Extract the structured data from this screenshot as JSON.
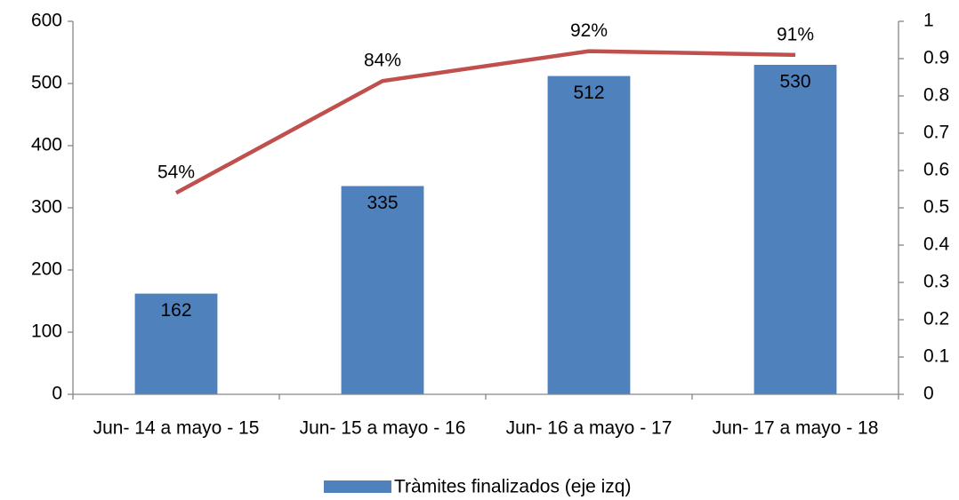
{
  "chart_data": {
    "type": "bar",
    "categories": [
      "Jun- 14 a mayo - 15",
      "Jun- 15 a mayo - 16",
      "Jun- 16 a mayo - 17",
      "Jun- 17 a mayo - 18"
    ],
    "series": [
      {
        "name": "Tràmites finalizados (eje izq)",
        "type": "bar",
        "color": "#4f81bd",
        "values": [
          162,
          335,
          512,
          530
        ]
      },
      {
        "type": "line",
        "axis": "y2",
        "color": "#c0504d",
        "values": [
          0.54,
          0.84,
          0.92,
          0.91
        ],
        "value_labels": [
          "54%",
          "84%",
          "92%",
          "91%"
        ]
      }
    ],
    "ylim": [
      0,
      600
    ],
    "yticks": [
      0,
      100,
      200,
      300,
      400,
      500,
      600
    ],
    "y2lim": [
      0,
      1
    ],
    "y2ticks": [
      0,
      0.1,
      0.2,
      0.3,
      0.4,
      0.5,
      0.6,
      0.7,
      0.8,
      0.9,
      1
    ],
    "grid": false,
    "legend": "bottom"
  }
}
